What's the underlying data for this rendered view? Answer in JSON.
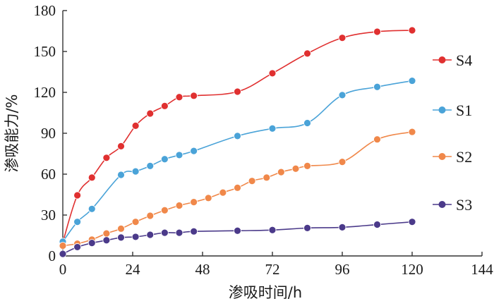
{
  "chart_data": {
    "type": "line",
    "xlabel": "渗吸时间/h",
    "ylabel": "渗吸能力/%",
    "xlim": [
      0,
      144
    ],
    "ylim": [
      0,
      180
    ],
    "xticks": [
      0,
      24,
      48,
      72,
      96,
      120,
      144
    ],
    "yticks": [
      0,
      30,
      60,
      90,
      120,
      150,
      180
    ],
    "xtick_labels": [
      "0",
      "24",
      "48",
      "72",
      "96",
      "120",
      "144"
    ],
    "ytick_labels": [
      "0",
      "30",
      "60",
      "90",
      "120",
      "150",
      "180"
    ],
    "grid": false,
    "legend_position": "right",
    "series": [
      {
        "name": "S4",
        "color": "#e03030",
        "x": [
          0,
          5,
          10,
          15,
          20,
          25,
          30,
          35,
          40,
          45,
          60,
          72,
          84,
          96,
          108,
          120
        ],
        "y": [
          10,
          44.5,
          57.5,
          72,
          80.5,
          95.5,
          104.5,
          110,
          116.5,
          117.5,
          120.5,
          134,
          148.5,
          160,
          164.5,
          165.5
        ]
      },
      {
        "name": "S1",
        "color": "#4aa3d8",
        "x": [
          0,
          5,
          10,
          20,
          25,
          30,
          35,
          40,
          45,
          60,
          72,
          84,
          96,
          108,
          120
        ],
        "y": [
          10.5,
          25,
          34.5,
          59.5,
          62,
          66,
          71,
          74,
          77,
          88,
          93.5,
          97.5,
          118,
          124,
          128.5
        ]
      },
      {
        "name": "S2",
        "color": "#f0884a",
        "x": [
          0,
          5,
          10,
          15,
          20,
          25,
          30,
          35,
          40,
          45,
          50,
          55,
          60,
          65,
          70,
          75,
          80,
          84,
          96,
          108,
          120
        ],
        "y": [
          7.5,
          9,
          12,
          16.5,
          20,
          25,
          29.5,
          33.5,
          37,
          39.5,
          42.5,
          46.5,
          50,
          55,
          57.5,
          61.5,
          64,
          66,
          69,
          85.5,
          91
        ]
      },
      {
        "name": "S3",
        "color": "#4b3a8a",
        "x": [
          0,
          5,
          10,
          15,
          20,
          25,
          30,
          35,
          40,
          45,
          60,
          72,
          84,
          96,
          108,
          120
        ],
        "y": [
          1.5,
          6.5,
          9.5,
          11.5,
          13.5,
          14,
          15.5,
          17,
          17,
          18,
          18.5,
          19,
          20.5,
          21,
          23,
          25
        ]
      }
    ],
    "legend_order": [
      "S4",
      "S1",
      "S2",
      "S3"
    ]
  }
}
